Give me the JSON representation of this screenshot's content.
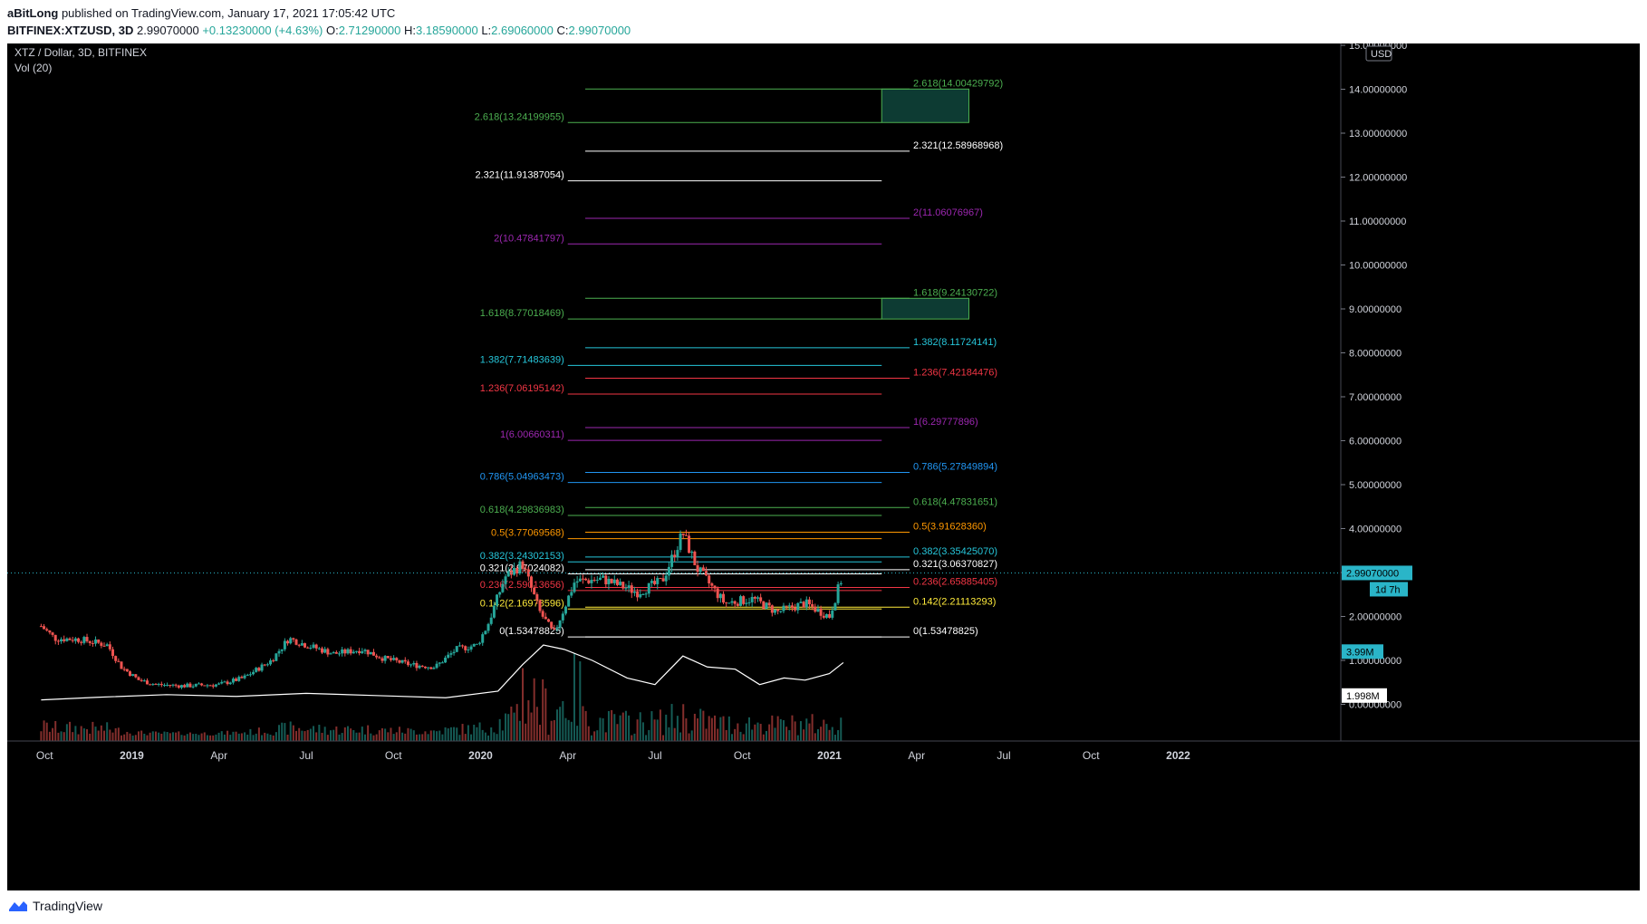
{
  "header": {
    "author": "aBitLong",
    "published_text": "published on TradingView.com, January 17, 2021 17:05:42 UTC",
    "symbol": "BITFINEX:XTZUSD, 3D",
    "last": "2.99070000",
    "change": "+0.13230000 (+4.63%)",
    "open_label": "O:",
    "open": "2.71290000",
    "high_label": "H:",
    "high": "3.18590000",
    "low_label": "L:",
    "low": "2.69060000",
    "close_label": "C:",
    "close": "2.99070000"
  },
  "legend": {
    "title": "XTZ / Dollar, 3D, BITFINEX",
    "volume": "Vol (20)"
  },
  "footer": {
    "brand": "TradingView"
  },
  "colors": {
    "background": "#000000",
    "up": "#26a69a",
    "down": "#ef5350",
    "price_line": "#2ab5c8",
    "fib_green": "#4caf50",
    "fib_white": "#ffffff",
    "fib_purple": "#9c27b0",
    "fib_teal": "#26c6da",
    "fib_red": "#f23645",
    "fib_blue": "#2196f3",
    "fib_orange": "#ff9800",
    "fib_yellow": "#ffeb3b",
    "box_fill": "#0d3b33"
  },
  "chart_data": {
    "type": "candlestick",
    "title": "XTZ / Dollar, 3D, BITFINEX",
    "currency": "USD",
    "ylim": [
      -0.5,
      15.0
    ],
    "y_ticks": [
      "15.00000000",
      "14.00000000",
      "13.00000000",
      "12.00000000",
      "11.00000000",
      "10.00000000",
      "9.00000000",
      "8.00000000",
      "7.00000000",
      "6.00000000",
      "5.00000000",
      "4.00000000",
      "3.00000000",
      "2.00000000",
      "1.00000000",
      "0.00000000"
    ],
    "x_ticks": [
      "Oct",
      "2019",
      "Apr",
      "Jul",
      "Oct",
      "2020",
      "Apr",
      "Jul",
      "Oct",
      "2021",
      "Apr",
      "Jul",
      "Oct",
      "2022"
    ],
    "x_ticks_bold": [
      "2019",
      "2020",
      "2021",
      "2022"
    ],
    "last_price_label": "2.99070000",
    "countdown_label": "1d 7h",
    "volume_label": "3.99M",
    "volume_ma_label": "1.998M",
    "close_path": [
      [
        2018.74,
        1.78
      ],
      [
        2018.78,
        1.5
      ],
      [
        2018.85,
        1.48
      ],
      [
        2018.93,
        1.35
      ],
      [
        2018.97,
        0.85
      ],
      [
        2019.02,
        0.55
      ],
      [
        2019.07,
        0.45
      ],
      [
        2019.15,
        0.42
      ],
      [
        2019.25,
        0.45
      ],
      [
        2019.32,
        0.6
      ],
      [
        2019.4,
        1.0
      ],
      [
        2019.45,
        1.5
      ],
      [
        2019.5,
        1.35
      ],
      [
        2019.58,
        1.15
      ],
      [
        2019.66,
        1.25
      ],
      [
        2019.72,
        1.05
      ],
      [
        2019.8,
        0.9
      ],
      [
        2019.87,
        0.85
      ],
      [
        2019.93,
        1.25
      ],
      [
        2019.99,
        1.35
      ],
      [
        2020.02,
        1.8
      ],
      [
        2020.07,
        2.9
      ],
      [
        2020.12,
        3.2
      ],
      [
        2020.17,
        2.1
      ],
      [
        2020.21,
        1.6
      ],
      [
        2020.27,
        2.8
      ],
      [
        2020.35,
        2.85
      ],
      [
        2020.45,
        2.55
      ],
      [
        2020.52,
        2.8
      ],
      [
        2020.58,
        3.9
      ],
      [
        2020.62,
        3.1
      ],
      [
        2020.7,
        2.3
      ],
      [
        2020.78,
        2.4
      ],
      [
        2020.85,
        2.1
      ],
      [
        2020.93,
        2.3
      ],
      [
        2021.0,
        2.0
      ],
      [
        2021.04,
        2.99
      ]
    ],
    "volume_ma_path": [
      [
        2018.74,
        0.1
      ],
      [
        2018.9,
        0.16
      ],
      [
        2019.1,
        0.22
      ],
      [
        2019.3,
        0.18
      ],
      [
        2019.5,
        0.25
      ],
      [
        2019.7,
        0.2
      ],
      [
        2019.9,
        0.15
      ],
      [
        2020.05,
        0.3
      ],
      [
        2020.12,
        0.9
      ],
      [
        2020.18,
        1.35
      ],
      [
        2020.24,
        1.25
      ],
      [
        2020.32,
        1.0
      ],
      [
        2020.42,
        0.6
      ],
      [
        2020.5,
        0.45
      ],
      [
        2020.58,
        1.1
      ],
      [
        2020.65,
        0.85
      ],
      [
        2020.73,
        0.8
      ],
      [
        2020.8,
        0.45
      ],
      [
        2020.87,
        0.6
      ],
      [
        2020.93,
        0.55
      ],
      [
        2021.0,
        0.7
      ],
      [
        2021.04,
        0.95
      ]
    ],
    "fib_levels_left": [
      {
        "label": "2.618(13.24199955)",
        "value": 13.24199955,
        "color": "#4caf50"
      },
      {
        "label": "2.321(11.91387054)",
        "value": 11.91387054,
        "color": "#ffffff"
      },
      {
        "label": "2(10.47841797)",
        "value": 10.47841797,
        "color": "#9c27b0"
      },
      {
        "label": "1.618(8.77018469)",
        "value": 8.77018469,
        "color": "#4caf50"
      },
      {
        "label": "1.382(7.71483639)",
        "value": 7.71483639,
        "color": "#26c6da"
      },
      {
        "label": "1.236(7.06195142)",
        "value": 7.06195142,
        "color": "#f23645"
      },
      {
        "label": "1(6.00660311)",
        "value": 6.00660311,
        "color": "#9c27b0"
      },
      {
        "label": "0.786(5.04963473)",
        "value": 5.04963473,
        "color": "#2196f3"
      },
      {
        "label": "0.618(4.29836983)",
        "value": 4.29836983,
        "color": "#4caf50"
      },
      {
        "label": "0.5(3.77069568)",
        "value": 3.77069568,
        "color": "#ff9800"
      },
      {
        "label": "0.382(3.24302153)",
        "value": 3.24302153,
        "color": "#26c6da"
      },
      {
        "label": "0.321(2.97024082)",
        "value": 2.97024082,
        "color": "#ffffff"
      },
      {
        "label": "0.236(2.59013656)",
        "value": 2.59013656,
        "color": "#f23645"
      },
      {
        "label": "0.142(2.16978596)",
        "value": 2.16978596,
        "color": "#ffeb3b"
      },
      {
        "label": "0(1.53478825)",
        "value": 1.53478825,
        "color": "#ffffff"
      }
    ],
    "fib_levels_right": [
      {
        "label": "2.618(14.00429792)",
        "value": 14.00429792,
        "color": "#4caf50"
      },
      {
        "label": "2.321(12.58968968)",
        "value": 12.58968968,
        "color": "#ffffff"
      },
      {
        "label": "2(11.06076967)",
        "value": 11.06076967,
        "color": "#9c27b0"
      },
      {
        "label": "1.618(9.24130722)",
        "value": 9.24130722,
        "color": "#4caf50"
      },
      {
        "label": "1.382(8.11724141)",
        "value": 8.11724141,
        "color": "#26c6da"
      },
      {
        "label": "1.236(7.42184476)",
        "value": 7.42184476,
        "color": "#f23645"
      },
      {
        "label": "1(6.29777896)",
        "value": 6.29777896,
        "color": "#9c27b0"
      },
      {
        "label": "0.786(5.27849894)",
        "value": 5.27849894,
        "color": "#2196f3"
      },
      {
        "label": "0.618(4.47831651)",
        "value": 4.47831651,
        "color": "#4caf50"
      },
      {
        "label": "0.5(3.91628360)",
        "value": 3.9162836,
        "color": "#ff9800"
      },
      {
        "label": "0.382(3.35425070)",
        "value": 3.3542507,
        "color": "#26c6da"
      },
      {
        "label": "0.321(3.06370827)",
        "value": 3.06370827,
        "color": "#ffffff"
      },
      {
        "label": "0.236(2.65885405)",
        "value": 2.65885405,
        "color": "#f23645"
      },
      {
        "label": "0.142(2.21113293)",
        "value": 2.21113293,
        "color": "#ffeb3b"
      },
      {
        "label": "0(1.53478825)",
        "value": 1.53478825,
        "color": "#ffffff"
      }
    ]
  }
}
